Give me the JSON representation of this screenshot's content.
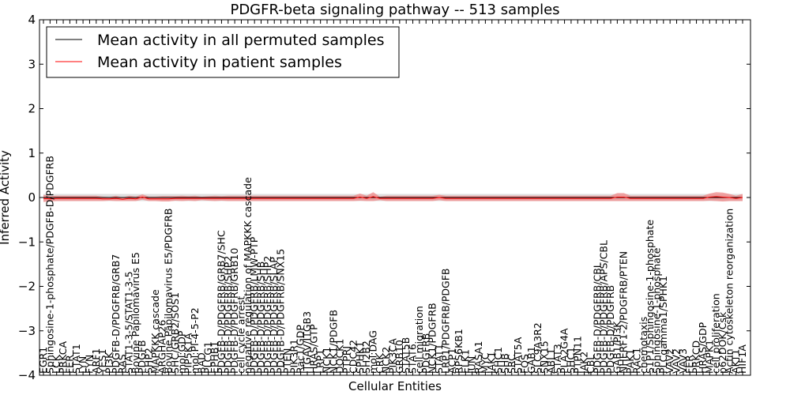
{
  "chart_data": {
    "type": "line",
    "title": "PDGFR-beta signaling pathway -- 513 samples",
    "xlabel": "Cellular Entities",
    "ylabel": "Inferred Activity",
    "ylim": [
      -4,
      4
    ],
    "yticks": [
      "−4",
      "−3",
      "−2",
      "−1",
      "0",
      "1",
      "2",
      "3",
      "4"
    ],
    "legend": {
      "location": "top-left",
      "entries": [
        {
          "label": "Mean activity in all permuted samples",
          "color": "#000000"
        },
        {
          "label": "Mean activity in patient samples",
          "color": "#ff0000"
        }
      ]
    },
    "entities": [
      "EGR1",
      "Sphingosine-1-phosphate/PDGFB-D/PDGFRB",
      "LCK",
      "PRKCA",
      "FER",
      "STAT1",
      "LYN",
      "FYN",
      "ARF1",
      "YES1",
      "PI3K",
      "PDGFB-D/PDGFRB/GRB7",
      "RAS",
      "STAT1-3-5/STAT1-3-5",
      "Bovine Papilomavirus E5",
      "PDGFB",
      "SHP2",
      "MAPKKK cascade",
      "ARGHAP26",
      "Bovine Papilomavirus E5/PDGFRB",
      "SHC/GRB2/SOS1",
      "mol:GDP",
      "PIP5K1A",
      "mol:PI-4-5-P2",
      "BAD",
      "PLCG1",
      "EPHB1",
      "PDGFB-D/PDGFRB/GRB7/SHC",
      "PDGFB-D/PDGFRB/SHP2",
      "PDGFB-D/PDGFRB/GRB10",
      "cell cycle arrest",
      "negative regulation of MAPKKK cascade",
      "PDGFB-D/PDGFRB/LMW-PTP",
      "PDGFB-D/PDGFRB/SHB",
      "PDGFB-D/PDGFRB/SHP2",
      "PDGFB-D/PDGFRB/SLAP",
      "PDGFB-D/PDGFRB/SNX15",
      "PTEN",
      "PIK3R1",
      "Rac1/GDP",
      "ITGAV/ITGB3",
      "HRAS/GTP",
      "LRP1",
      "NCK1",
      "NCK1/PDGFB",
      "DOCK1",
      "PTPRJ",
      "CDC42",
      "SPHK1",
      "SH2B2",
      "mol:DAG",
      "CRK",
      "NCK2",
      "PIK3CA",
      "GRB10",
      "STAT5B",
      "STAT6",
      "cell migration",
      "PDGFRB",
      "NCK1/PDGFRB",
      "STAT1",
      "LRP1/PDGFRB/PDGFB",
      "ACP1",
      "RPS6KB1",
      "ELK1",
      "JUN",
      "RASA1",
      "MYC",
      "JAK1",
      "SHC1",
      "SHB",
      "SRC",
      "STAT5A",
      "FOS",
      "GAB1",
      "SLC9A3R2",
      "SNX15",
      "ABL1",
      "STAT3",
      "PLA2G4A",
      "SHC1",
      "PTPN11",
      "JAK2",
      "CBL",
      "PDGFB-D/PDGFRB/CBL",
      "PDGFB-D/PDGFRB/APS/CBL",
      "PDGFB-D/PDGFRB",
      "GAB1/PI3K",
      "NHERF1-2/PDGFRB/PTEN",
      "PAK1",
      "RAC1",
      "chemotaxis",
      "S1P1/Sphingosine-1-phosphate",
      "Sphingosine-1-phosphate",
      "PLCgamma1/SPHK1",
      "VAV2",
      "VAV2",
      "VAV3",
      "FER",
      "PRKCD",
      "HRAS/GDP",
      "MAPK1",
      "cell proliferation",
      "p62DOK/Csk",
      "Actin cytoskeleton reorganization",
      "AKT1",
      "HIF1A"
    ],
    "patient_mean": [
      -0.02,
      -0.03,
      -0.02,
      -0.02,
      -0.02,
      -0.02,
      -0.02,
      -0.02,
      -0.02,
      -0.03,
      -0.03,
      -0.02,
      -0.04,
      -0.02,
      -0.03,
      0.01,
      -0.03,
      -0.03,
      -0.03,
      -0.03,
      -0.02,
      -0.02,
      -0.02,
      -0.02,
      -0.02,
      -0.02,
      -0.02,
      -0.02,
      -0.02,
      -0.02,
      -0.02,
      -0.02,
      -0.02,
      -0.02,
      -0.02,
      -0.02,
      -0.02,
      -0.02,
      -0.02,
      -0.02,
      -0.02,
      -0.02,
      -0.02,
      -0.02,
      -0.02,
      -0.02,
      -0.02,
      -0.02,
      0.01,
      -0.02,
      0.02,
      -0.02,
      -0.02,
      -0.02,
      -0.02,
      -0.02,
      -0.02,
      -0.02,
      -0.02,
      -0.02,
      0.0,
      -0.02,
      -0.02,
      -0.02,
      -0.02,
      -0.02,
      -0.02,
      -0.02,
      -0.02,
      -0.02,
      -0.02,
      -0.02,
      -0.02,
      -0.02,
      -0.02,
      -0.02,
      -0.02,
      -0.02,
      -0.02,
      -0.02,
      -0.02,
      -0.02,
      -0.02,
      -0.02,
      -0.02,
      -0.02,
      -0.02,
      0.01,
      0.01,
      -0.02,
      -0.02,
      -0.02,
      -0.02,
      -0.02,
      -0.02,
      -0.02,
      -0.02,
      -0.02,
      -0.02,
      -0.02,
      -0.02,
      0.01,
      0.02,
      0.01,
      0.0,
      -0.02,
      0.0,
      0.01,
      0.02
    ],
    "patient_spread": [
      0.08,
      0.06,
      0.06,
      0.06,
      0.06,
      0.06,
      0.06,
      0.06,
      0.06,
      0.05,
      0.04,
      0.06,
      0.04,
      0.06,
      0.05,
      0.06,
      0.05,
      0.05,
      0.06,
      0.06,
      0.05,
      0.06,
      0.05,
      0.06,
      0.04,
      0.05,
      0.06,
      0.05,
      0.06,
      0.06,
      0.06,
      0.06,
      0.06,
      0.06,
      0.06,
      0.06,
      0.06,
      0.06,
      0.06,
      0.06,
      0.06,
      0.06,
      0.06,
      0.06,
      0.06,
      0.06,
      0.06,
      0.06,
      0.08,
      0.06,
      0.1,
      0.04,
      0.06,
      0.06,
      0.06,
      0.06,
      0.06,
      0.06,
      0.06,
      0.06,
      0.06,
      0.06,
      0.06,
      0.06,
      0.06,
      0.06,
      0.06,
      0.06,
      0.06,
      0.06,
      0.06,
      0.06,
      0.06,
      0.06,
      0.06,
      0.06,
      0.06,
      0.06,
      0.06,
      0.06,
      0.06,
      0.06,
      0.06,
      0.06,
      0.06,
      0.06,
      0.06,
      0.09,
      0.09,
      0.06,
      0.06,
      0.06,
      0.06,
      0.06,
      0.06,
      0.06,
      0.06,
      0.06,
      0.06,
      0.06,
      0.06,
      0.08,
      0.1,
      0.1,
      0.08,
      0.06,
      0.08,
      0.09,
      0.07
    ],
    "permuted_mean_value": 0.0,
    "permuted_spread": 0.08
  }
}
